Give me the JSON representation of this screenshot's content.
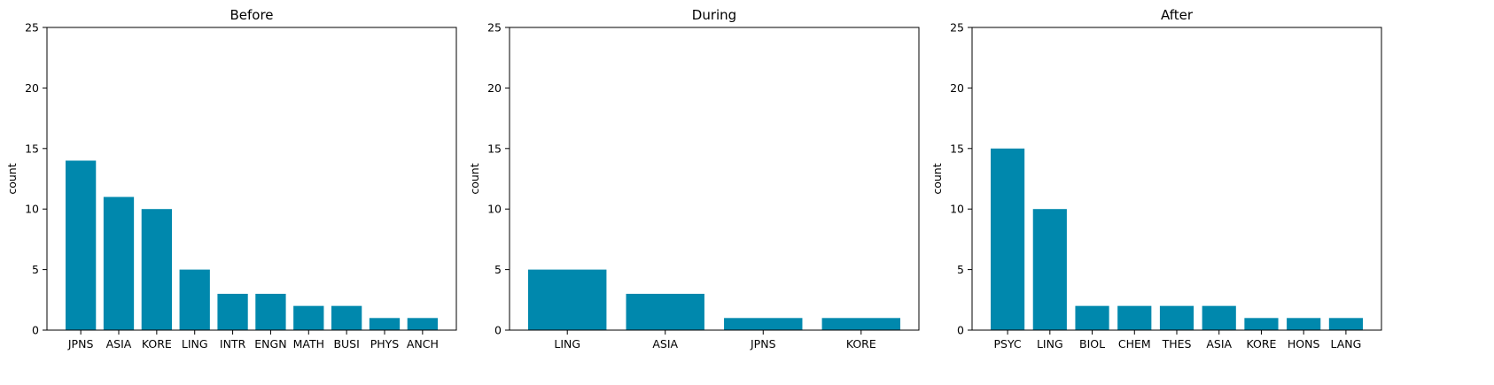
{
  "figure": {
    "bar_color": "#0088ad",
    "background": "#ffffff"
  },
  "chart_data": [
    {
      "type": "bar",
      "title": "Before",
      "xlabel": "",
      "ylabel": "count",
      "ylim": [
        0,
        25
      ],
      "yticks": [
        0,
        5,
        10,
        15,
        20,
        25
      ],
      "grid": false,
      "categories": [
        "JPNS",
        "ASIA",
        "KORE",
        "LING",
        "INTR",
        "ENGN",
        "MATH",
        "BUSI",
        "PHYS",
        "ANCH"
      ],
      "values": [
        14,
        11,
        10,
        5,
        3,
        3,
        2,
        2,
        1,
        1
      ]
    },
    {
      "type": "bar",
      "title": "During",
      "xlabel": "",
      "ylabel": "count",
      "ylim": [
        0,
        25
      ],
      "yticks": [
        0,
        5,
        10,
        15,
        20,
        25
      ],
      "grid": false,
      "categories": [
        "LING",
        "ASIA",
        "JPNS",
        "KORE"
      ],
      "values": [
        5,
        3,
        1,
        1
      ]
    },
    {
      "type": "bar",
      "title": "After",
      "xlabel": "",
      "ylabel": "count",
      "ylim": [
        0,
        25
      ],
      "yticks": [
        0,
        5,
        10,
        15,
        20,
        25
      ],
      "grid": false,
      "categories": [
        "PSYC",
        "LING",
        "BIOL",
        "CHEM",
        "THES",
        "ASIA",
        "KORE",
        "HONS",
        "LANG"
      ],
      "values": [
        15,
        10,
        2,
        2,
        2,
        2,
        1,
        1,
        1
      ]
    }
  ]
}
